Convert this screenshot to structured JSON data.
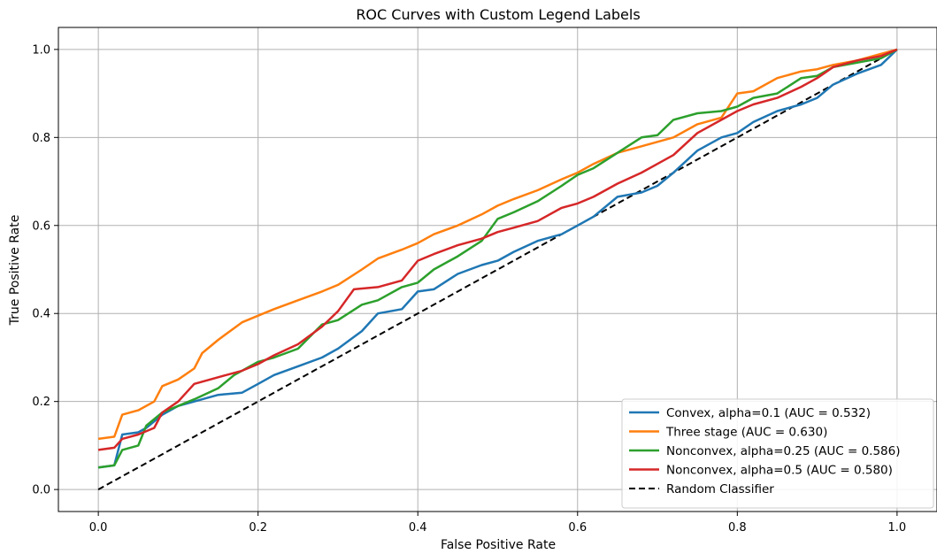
{
  "chart_data": {
    "type": "line",
    "title": "ROC Curves with Custom Legend Labels",
    "xlabel": "False Positive Rate",
    "ylabel": "True Positive Rate",
    "xlim": [
      -0.05,
      1.05
    ],
    "ylim": [
      -0.05,
      1.05
    ],
    "xticks": [
      0.0,
      0.2,
      0.4,
      0.6,
      0.8,
      1.0
    ],
    "xtick_labels": [
      "0.0",
      "0.2",
      "0.4",
      "0.6",
      "0.8",
      "1.0"
    ],
    "yticks": [
      0.0,
      0.2,
      0.4,
      0.6,
      0.8,
      1.0
    ],
    "ytick_labels": [
      "0.0",
      "0.2",
      "0.4",
      "0.6",
      "0.8",
      "1.0"
    ],
    "grid": true,
    "legend_position": "lower-right",
    "series": [
      {
        "name": "Convex, alpha=0.1 (AUC = 0.532)",
        "color": "#1f77b4",
        "dash": "solid",
        "x": [
          0.0,
          0.02,
          0.03,
          0.05,
          0.06,
          0.08,
          0.1,
          0.12,
          0.15,
          0.18,
          0.2,
          0.22,
          0.25,
          0.28,
          0.3,
          0.33,
          0.35,
          0.38,
          0.4,
          0.42,
          0.45,
          0.48,
          0.5,
          0.52,
          0.55,
          0.58,
          0.6,
          0.62,
          0.65,
          0.68,
          0.7,
          0.72,
          0.75,
          0.78,
          0.8,
          0.82,
          0.85,
          0.88,
          0.9,
          0.92,
          0.95,
          0.98,
          1.0
        ],
        "y": [
          0.05,
          0.055,
          0.125,
          0.13,
          0.14,
          0.17,
          0.19,
          0.2,
          0.215,
          0.22,
          0.24,
          0.26,
          0.28,
          0.3,
          0.32,
          0.36,
          0.4,
          0.41,
          0.45,
          0.455,
          0.49,
          0.51,
          0.52,
          0.54,
          0.565,
          0.58,
          0.6,
          0.62,
          0.665,
          0.675,
          0.69,
          0.72,
          0.77,
          0.8,
          0.81,
          0.835,
          0.86,
          0.875,
          0.89,
          0.92,
          0.945,
          0.965,
          1.0
        ]
      },
      {
        "name": "Three stage (AUC = 0.630)",
        "color": "#ff7f0e",
        "dash": "solid",
        "x": [
          0.0,
          0.02,
          0.03,
          0.05,
          0.07,
          0.08,
          0.1,
          0.12,
          0.13,
          0.15,
          0.18,
          0.2,
          0.22,
          0.25,
          0.28,
          0.3,
          0.33,
          0.35,
          0.38,
          0.4,
          0.42,
          0.45,
          0.48,
          0.5,
          0.52,
          0.55,
          0.58,
          0.6,
          0.62,
          0.65,
          0.68,
          0.7,
          0.72,
          0.75,
          0.78,
          0.8,
          0.82,
          0.85,
          0.88,
          0.9,
          0.92,
          0.95,
          0.98,
          1.0
        ],
        "y": [
          0.115,
          0.12,
          0.17,
          0.18,
          0.2,
          0.235,
          0.25,
          0.275,
          0.31,
          0.34,
          0.38,
          0.395,
          0.41,
          0.43,
          0.45,
          0.465,
          0.5,
          0.525,
          0.545,
          0.56,
          0.58,
          0.6,
          0.625,
          0.645,
          0.66,
          0.68,
          0.705,
          0.72,
          0.74,
          0.765,
          0.78,
          0.79,
          0.8,
          0.83,
          0.845,
          0.9,
          0.905,
          0.935,
          0.95,
          0.955,
          0.965,
          0.975,
          0.99,
          1.0
        ]
      },
      {
        "name": "Nonconvex, alpha=0.25 (AUC = 0.586)",
        "color": "#2ca02c",
        "dash": "solid",
        "x": [
          0.0,
          0.02,
          0.03,
          0.05,
          0.06,
          0.08,
          0.1,
          0.12,
          0.15,
          0.17,
          0.2,
          0.22,
          0.25,
          0.28,
          0.3,
          0.33,
          0.35,
          0.38,
          0.4,
          0.42,
          0.45,
          0.48,
          0.5,
          0.52,
          0.55,
          0.58,
          0.6,
          0.62,
          0.65,
          0.68,
          0.7,
          0.72,
          0.75,
          0.78,
          0.8,
          0.82,
          0.85,
          0.88,
          0.9,
          0.92,
          0.95,
          0.98,
          1.0
        ],
        "y": [
          0.05,
          0.055,
          0.09,
          0.1,
          0.145,
          0.175,
          0.19,
          0.205,
          0.23,
          0.26,
          0.29,
          0.3,
          0.32,
          0.375,
          0.385,
          0.42,
          0.43,
          0.46,
          0.47,
          0.5,
          0.53,
          0.565,
          0.615,
          0.63,
          0.655,
          0.69,
          0.715,
          0.73,
          0.765,
          0.8,
          0.805,
          0.84,
          0.855,
          0.86,
          0.87,
          0.89,
          0.9,
          0.935,
          0.94,
          0.96,
          0.97,
          0.98,
          1.0
        ]
      },
      {
        "name": "Nonconvex, alpha=0.5 (AUC = 0.580)",
        "color": "#d62728",
        "dash": "solid",
        "x": [
          0.0,
          0.02,
          0.03,
          0.05,
          0.07,
          0.08,
          0.1,
          0.12,
          0.15,
          0.18,
          0.2,
          0.22,
          0.25,
          0.28,
          0.3,
          0.32,
          0.35,
          0.38,
          0.4,
          0.42,
          0.45,
          0.48,
          0.5,
          0.52,
          0.55,
          0.58,
          0.6,
          0.62,
          0.65,
          0.68,
          0.7,
          0.72,
          0.75,
          0.78,
          0.8,
          0.82,
          0.85,
          0.88,
          0.9,
          0.92,
          0.95,
          0.98,
          1.0
        ],
        "y": [
          0.09,
          0.095,
          0.115,
          0.125,
          0.14,
          0.175,
          0.2,
          0.24,
          0.255,
          0.27,
          0.285,
          0.305,
          0.33,
          0.37,
          0.405,
          0.455,
          0.46,
          0.475,
          0.52,
          0.535,
          0.555,
          0.57,
          0.585,
          0.595,
          0.61,
          0.64,
          0.65,
          0.665,
          0.695,
          0.72,
          0.74,
          0.76,
          0.81,
          0.84,
          0.86,
          0.875,
          0.89,
          0.915,
          0.935,
          0.96,
          0.975,
          0.985,
          1.0
        ]
      },
      {
        "name": "Random Classifier",
        "color": "#000000",
        "dash": "dashed",
        "x": [
          0.0,
          1.0
        ],
        "y": [
          0.0,
          1.0
        ]
      }
    ]
  }
}
